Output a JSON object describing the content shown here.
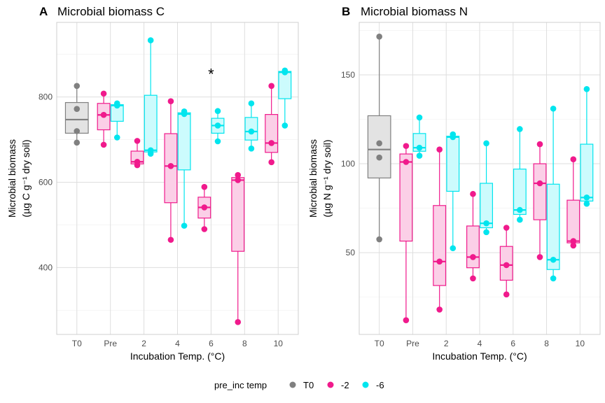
{
  "legend": {
    "title": "pre_inc temp",
    "items": [
      {
        "label": "T0",
        "color": "#808080"
      },
      {
        "label": "-2",
        "color": "#F01A8C"
      },
      {
        "label": "-6",
        "color": "#00E5EE"
      }
    ]
  },
  "chart_data": [
    {
      "type": "box",
      "panel_label": "A",
      "title": "Microbial biomass C",
      "xlabel": "Incubation Temp. (°C)",
      "ylabel_line1": "Microbial biomass",
      "ylabel_line2": "(µg C g⁻¹ dry soil)",
      "categories": [
        "T0",
        "Pre",
        "2",
        "4",
        "6",
        "8",
        "10"
      ],
      "ylim": [
        243,
        975
      ],
      "yticks": [
        400,
        600,
        800
      ],
      "annotation": {
        "text": "*",
        "category": "6",
        "y": 858
      },
      "boxes": [
        {
          "category": "T0",
          "group": "T0",
          "min": 693,
          "q1": 715,
          "median": 747,
          "q3": 787,
          "max": 826,
          "points": [
            693,
            720,
            772,
            826
          ]
        },
        {
          "category": "Pre",
          "group": "-2",
          "min": 688,
          "q1": 723,
          "median": 758,
          "q3": 785,
          "max": 808,
          "points": [
            688,
            758,
            808
          ]
        },
        {
          "category": "Pre",
          "group": "-6",
          "min": 705,
          "q1": 743,
          "median": 780,
          "q3": 782,
          "max": 785,
          "points": [
            705,
            780,
            785
          ]
        },
        {
          "category": "2",
          "group": "-2",
          "min": 640,
          "q1": 643,
          "median": 648,
          "q3": 673,
          "max": 697,
          "points": [
            640,
            648,
            697
          ]
        },
        {
          "category": "2",
          "group": "-6",
          "min": 667,
          "q1": 671,
          "median": 675,
          "q3": 804,
          "max": 933,
          "points": [
            667,
            675,
            933
          ]
        },
        {
          "category": "4",
          "group": "-2",
          "min": 465,
          "q1": 552,
          "median": 638,
          "q3": 714,
          "max": 790,
          "points": [
            465,
            638,
            790
          ]
        },
        {
          "category": "4",
          "group": "-6",
          "min": 498,
          "q1": 629,
          "median": 760,
          "q3": 763,
          "max": 766,
          "points": [
            498,
            760,
            766
          ]
        },
        {
          "category": "6",
          "group": "-2",
          "min": 490,
          "q1": 516,
          "median": 541,
          "q3": 565,
          "max": 589,
          "points": [
            490,
            541,
            589
          ]
        },
        {
          "category": "6",
          "group": "-6",
          "min": 696,
          "q1": 715,
          "median": 733,
          "q3": 750,
          "max": 767,
          "points": [
            696,
            733,
            767
          ]
        },
        {
          "category": "8",
          "group": "-2",
          "min": 272,
          "q1": 438,
          "median": 605,
          "q3": 611,
          "max": 617,
          "points": [
            272,
            605,
            617
          ]
        },
        {
          "category": "8",
          "group": "-6",
          "min": 679,
          "q1": 699,
          "median": 719,
          "q3": 752,
          "max": 785,
          "points": [
            679,
            719,
            785
          ]
        },
        {
          "category": "10",
          "group": "-2",
          "min": 647,
          "q1": 670,
          "median": 692,
          "q3": 759,
          "max": 826,
          "points": [
            647,
            692,
            826
          ]
        },
        {
          "category": "10",
          "group": "-6",
          "min": 733,
          "q1": 796,
          "median": 858,
          "q3": 860,
          "max": 862,
          "points": [
            733,
            858,
            862
          ]
        }
      ]
    },
    {
      "type": "box",
      "panel_label": "B",
      "title": "Microbial biomass N",
      "xlabel": "Incubation Temp. (°C)",
      "ylabel_line1": "Microbial biomass",
      "ylabel_line2": "(µg N g⁻¹ dry soil)",
      "categories": [
        "T0",
        "Pre",
        "2",
        "4",
        "6",
        "8",
        "10"
      ],
      "ylim": [
        4.0,
        179.5
      ],
      "yticks": [
        50,
        100,
        150
      ],
      "boxes": [
        {
          "category": "T0",
          "group": "T0",
          "min": 57.5,
          "q1": 92,
          "median": 108,
          "q3": 127,
          "max": 171.5,
          "points": [
            57.5,
            103.5,
            111.5,
            171.5
          ]
        },
        {
          "category": "Pre",
          "group": "-2",
          "min": 12,
          "q1": 56.5,
          "median": 101,
          "q3": 105.5,
          "max": 110,
          "points": [
            12,
            101,
            110
          ]
        },
        {
          "category": "Pre",
          "group": "-6",
          "min": 104.5,
          "q1": 107,
          "median": 109,
          "q3": 117,
          "max": 126,
          "points": [
            104.5,
            109,
            126
          ]
        },
        {
          "category": "2",
          "group": "-2",
          "min": 18,
          "q1": 31.5,
          "median": 45,
          "q3": 76.5,
          "max": 108,
          "points": [
            18,
            45,
            108
          ]
        },
        {
          "category": "2",
          "group": "-6",
          "min": 52.5,
          "q1": 84.5,
          "median": 115,
          "q3": 115.5,
          "max": 116.5,
          "points": [
            52.5,
            115,
            116.5
          ]
        },
        {
          "category": "4",
          "group": "-2",
          "min": 35.5,
          "q1": 41.5,
          "median": 47.5,
          "q3": 65,
          "max": 83,
          "points": [
            35.5,
            47.5,
            83
          ]
        },
        {
          "category": "4",
          "group": "-6",
          "min": 61.5,
          "q1": 64,
          "median": 66.5,
          "q3": 89,
          "max": 111.5,
          "points": [
            61.5,
            66.5,
            111.5
          ]
        },
        {
          "category": "6",
          "group": "-2",
          "min": 26.5,
          "q1": 34.5,
          "median": 43,
          "q3": 53.5,
          "max": 64,
          "points": [
            26.5,
            43,
            64
          ]
        },
        {
          "category": "6",
          "group": "-6",
          "min": 68.5,
          "q1": 71.5,
          "median": 74,
          "q3": 97,
          "max": 119.5,
          "points": [
            68.5,
            74,
            119.5
          ]
        },
        {
          "category": "8",
          "group": "-2",
          "min": 47.5,
          "q1": 68.5,
          "median": 89,
          "q3": 100,
          "max": 111,
          "points": [
            47.5,
            89,
            111
          ]
        },
        {
          "category": "8",
          "group": "-6",
          "min": 35.5,
          "q1": 40.5,
          "median": 46,
          "q3": 88.5,
          "max": 131,
          "points": [
            35.5,
            46,
            131
          ]
        },
        {
          "category": "10",
          "group": "-2",
          "min": 54,
          "q1": 55.5,
          "median": 56.5,
          "q3": 79.5,
          "max": 102.5,
          "points": [
            54,
            56.5,
            102.5
          ]
        },
        {
          "category": "10",
          "group": "-6",
          "min": 77.5,
          "q1": 79,
          "median": 81,
          "q3": 111,
          "max": 142,
          "points": [
            77.5,
            81,
            142
          ]
        }
      ]
    }
  ]
}
